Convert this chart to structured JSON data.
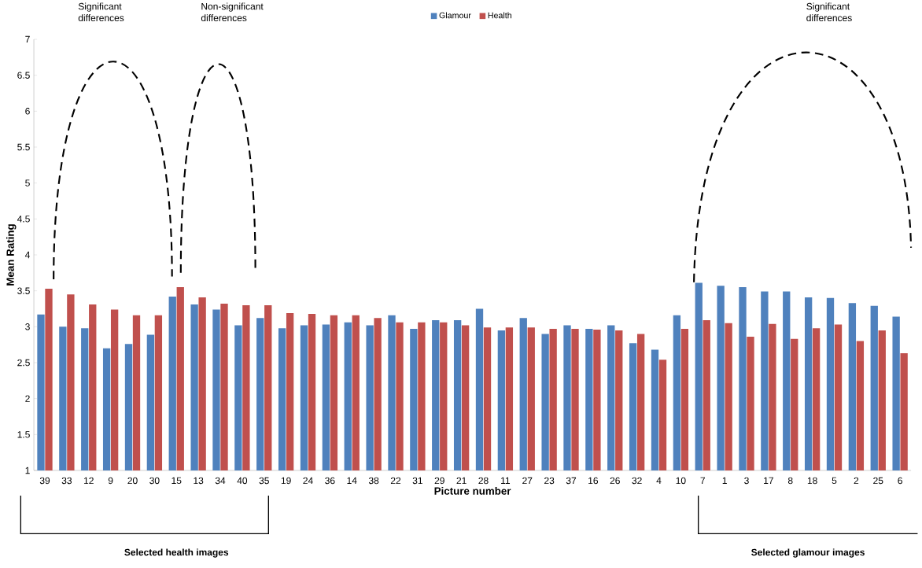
{
  "chart_data": {
    "type": "bar",
    "xlabel": "Picture number",
    "ylabel": "Mean Rating",
    "categories": [
      "39",
      "33",
      "12",
      "9",
      "20",
      "30",
      "15",
      "13",
      "34",
      "40",
      "35",
      "19",
      "24",
      "36",
      "14",
      "38",
      "22",
      "31",
      "29",
      "21",
      "28",
      "11",
      "27",
      "23",
      "37",
      "16",
      "26",
      "32",
      "4",
      "10",
      "7",
      "1",
      "3",
      "17",
      "8",
      "18",
      "5",
      "2",
      "25",
      "6"
    ],
    "series": [
      {
        "name": "Glamour",
        "color": "#4f81bd",
        "values": [
          3.17,
          3.0,
          2.98,
          2.7,
          2.76,
          2.89,
          3.42,
          3.31,
          3.24,
          3.02,
          3.12,
          2.98,
          3.02,
          3.03,
          3.06,
          3.02,
          3.16,
          2.97,
          3.09,
          3.09,
          3.25,
          2.95,
          3.12,
          2.9,
          3.02,
          2.97,
          3.02,
          2.77,
          2.68,
          3.16,
          3.61,
          3.57,
          3.55,
          3.49,
          3.49,
          3.41,
          3.4,
          3.33,
          3.29,
          3.14
        ]
      },
      {
        "name": "Health",
        "color": "#c0504d",
        "values": [
          3.53,
          3.45,
          3.31,
          3.24,
          3.16,
          3.16,
          3.55,
          3.41,
          3.32,
          3.3,
          3.3,
          3.19,
          3.18,
          3.16,
          3.16,
          3.12,
          3.06,
          3.06,
          3.06,
          3.02,
          2.99,
          2.99,
          2.99,
          2.97,
          2.97,
          2.96,
          2.95,
          2.9,
          2.54,
          2.97,
          3.09,
          3.05,
          2.86,
          3.04,
          2.83,
          2.98,
          3.03,
          2.8,
          2.95,
          2.63
        ]
      }
    ],
    "ylim": [
      1,
      7
    ],
    "yticks": [
      1,
      1.5,
      2,
      2.5,
      3,
      3.5,
      4,
      4.5,
      5,
      5.5,
      6,
      6.5,
      7
    ],
    "grid": false,
    "legend": "top",
    "annotations": [
      "Significant differences",
      "Non-significant differences",
      "Significant differences",
      "Selected health images",
      "Selected glamour images"
    ]
  }
}
